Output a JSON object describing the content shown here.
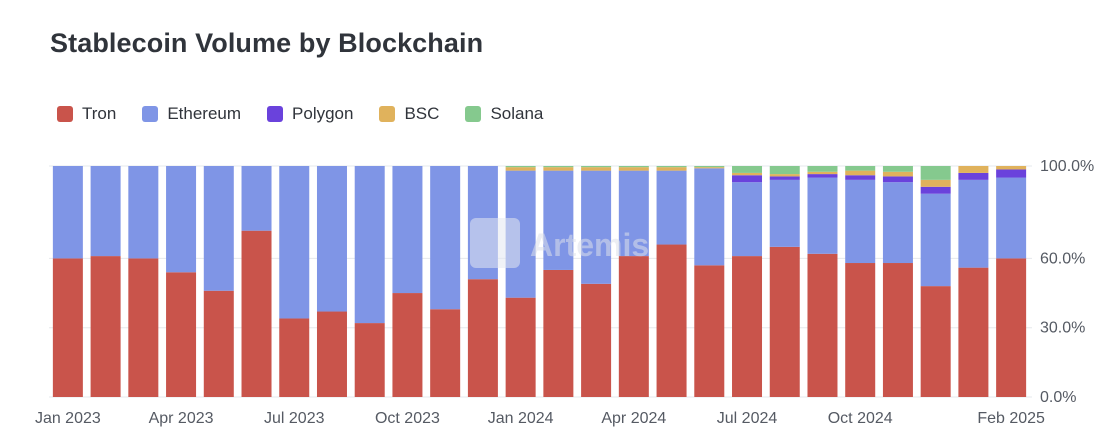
{
  "chart_data": {
    "type": "bar",
    "stacked": true,
    "normalized": true,
    "title": "Stablecoin Volume by Blockchain",
    "watermark": "Artemis",
    "legend_position": "top-left",
    "grid": true,
    "ylim": [
      0,
      100
    ],
    "y_ticks": [
      "100.0%",
      "60.0%",
      "30.0%",
      "0.0%"
    ],
    "y_tick_values": [
      100,
      60,
      30,
      0
    ],
    "x_tick_labels": [
      {
        "label": "Jan 2023",
        "index": 0
      },
      {
        "label": "Apr 2023",
        "index": 3
      },
      {
        "label": "Jul 2023",
        "index": 6
      },
      {
        "label": "Oct 2023",
        "index": 9
      },
      {
        "label": "Jan 2024",
        "index": 12
      },
      {
        "label": "Apr 2024",
        "index": 15
      },
      {
        "label": "Jul 2024",
        "index": 18
      },
      {
        "label": "Oct 2024",
        "index": 21
      },
      {
        "label": "Feb 2025",
        "index": 25
      }
    ],
    "categories": [
      "Jan 2023",
      "Feb 2023",
      "Mar 2023",
      "Apr 2023",
      "May 2023",
      "Jun 2023",
      "Jul 2023",
      "Aug 2023",
      "Sep 2023",
      "Oct 2023",
      "Nov 2023",
      "Dec 2023",
      "Jan 2024",
      "Feb 2024",
      "Mar 2024",
      "Apr 2024",
      "May 2024",
      "Jun 2024",
      "Jul 2024",
      "Aug 2024",
      "Sep 2024",
      "Oct 2024",
      "Nov 2024",
      "Dec 2024",
      "Jan 2025",
      "Feb 2025"
    ],
    "series": [
      {
        "name": "Tron",
        "color": "#c9544b",
        "values": [
          60,
          61,
          60,
          54,
          46,
          72,
          34,
          37,
          32,
          45,
          38,
          51,
          43,
          55,
          49,
          61,
          66,
          57,
          61,
          65,
          62,
          58,
          58,
          48,
          56,
          60
        ]
      },
      {
        "name": "Ethereum",
        "color": "#7f95e6",
        "values": [
          40,
          39,
          40,
          46,
          54,
          28,
          66,
          63,
          68,
          55,
          62,
          49,
          55,
          43,
          49,
          37,
          32,
          42,
          32,
          29,
          33,
          36,
          35,
          40,
          38,
          35
        ]
      },
      {
        "name": "Polygon",
        "color": "#6a42dc",
        "values": [
          0,
          0,
          0,
          0,
          0,
          0,
          0,
          0,
          0,
          0,
          0,
          0,
          0,
          0,
          0,
          0,
          0,
          0,
          3,
          1.5,
          1.5,
          2,
          2.5,
          3,
          3,
          3.5
        ]
      },
      {
        "name": "BSC",
        "color": "#e0b25c",
        "values": [
          0,
          0,
          0,
          0,
          0,
          0,
          0,
          0,
          0,
          0,
          0,
          0,
          1.5,
          1.5,
          1.5,
          1.5,
          1.5,
          0.5,
          1,
          1,
          1,
          2,
          2,
          3,
          3,
          1.5
        ]
      },
      {
        "name": "Solana",
        "color": "#85c98e",
        "values": [
          0,
          0,
          0,
          0,
          0,
          0,
          0,
          0,
          0,
          0,
          0,
          0,
          0.5,
          0.5,
          0.5,
          0.5,
          0.5,
          0.5,
          3,
          3.5,
          2.5,
          2,
          2.5,
          6,
          0,
          0
        ]
      }
    ]
  }
}
